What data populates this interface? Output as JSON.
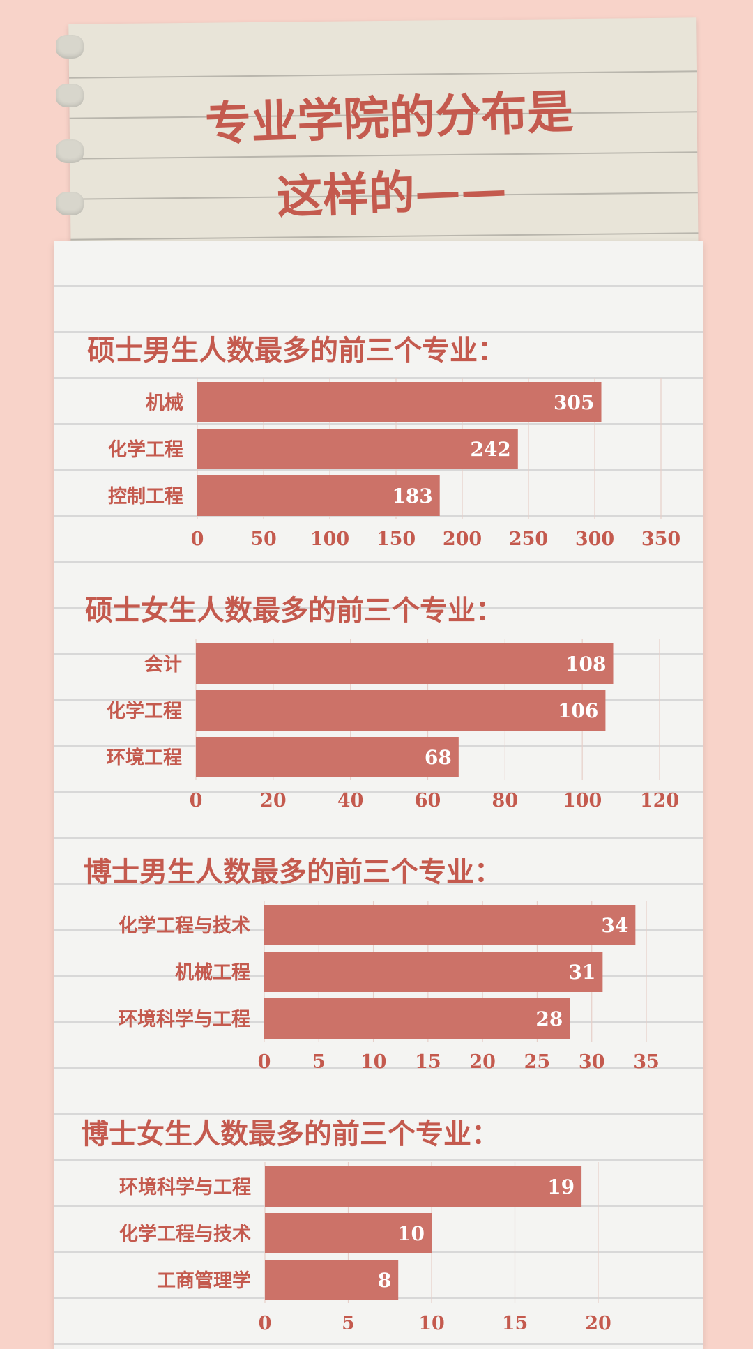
{
  "header": {
    "title_line1": "专业学院的分布是",
    "title_line2": "这样的——"
  },
  "colors": {
    "background": "#f8d3c9",
    "bar": "#cc7268",
    "text": "#c45a4e",
    "value_text": "#ffffff"
  },
  "chart_data": [
    {
      "type": "bar",
      "orientation": "horizontal",
      "title": "硕士男生人数最多的前三个专业：",
      "categories": [
        "机械",
        "化学工程",
        "控制工程"
      ],
      "values": [
        305,
        242,
        183
      ],
      "xlim": [
        0,
        350
      ],
      "xticks": [
        0,
        50,
        100,
        150,
        200,
        250,
        300,
        350
      ],
      "grid": true
    },
    {
      "type": "bar",
      "orientation": "horizontal",
      "title": "硕士女生人数最多的前三个专业：",
      "categories": [
        "会计",
        "化学工程",
        "环境工程"
      ],
      "values": [
        108,
        106,
        68
      ],
      "xlim": [
        0,
        120
      ],
      "xticks": [
        0,
        20,
        40,
        60,
        80,
        100,
        120
      ],
      "grid": true
    },
    {
      "type": "bar",
      "orientation": "horizontal",
      "title": "博士男生人数最多的前三个专业：",
      "categories": [
        "化学工程与技术",
        "机械工程",
        "环境科学与工程"
      ],
      "values": [
        34,
        31,
        28
      ],
      "xlim": [
        0,
        35
      ],
      "xticks": [
        0,
        5,
        10,
        15,
        20,
        25,
        30,
        35
      ],
      "grid": true
    },
    {
      "type": "bar",
      "orientation": "horizontal",
      "title": "博士女生人数最多的前三个专业：",
      "categories": [
        "环境科学与工程",
        "化学工程与技术",
        "工商管理学"
      ],
      "values": [
        19,
        10,
        8
      ],
      "xlim": [
        0,
        20
      ],
      "xticks": [
        0,
        5,
        10,
        15,
        20
      ],
      "grid": true
    }
  ]
}
